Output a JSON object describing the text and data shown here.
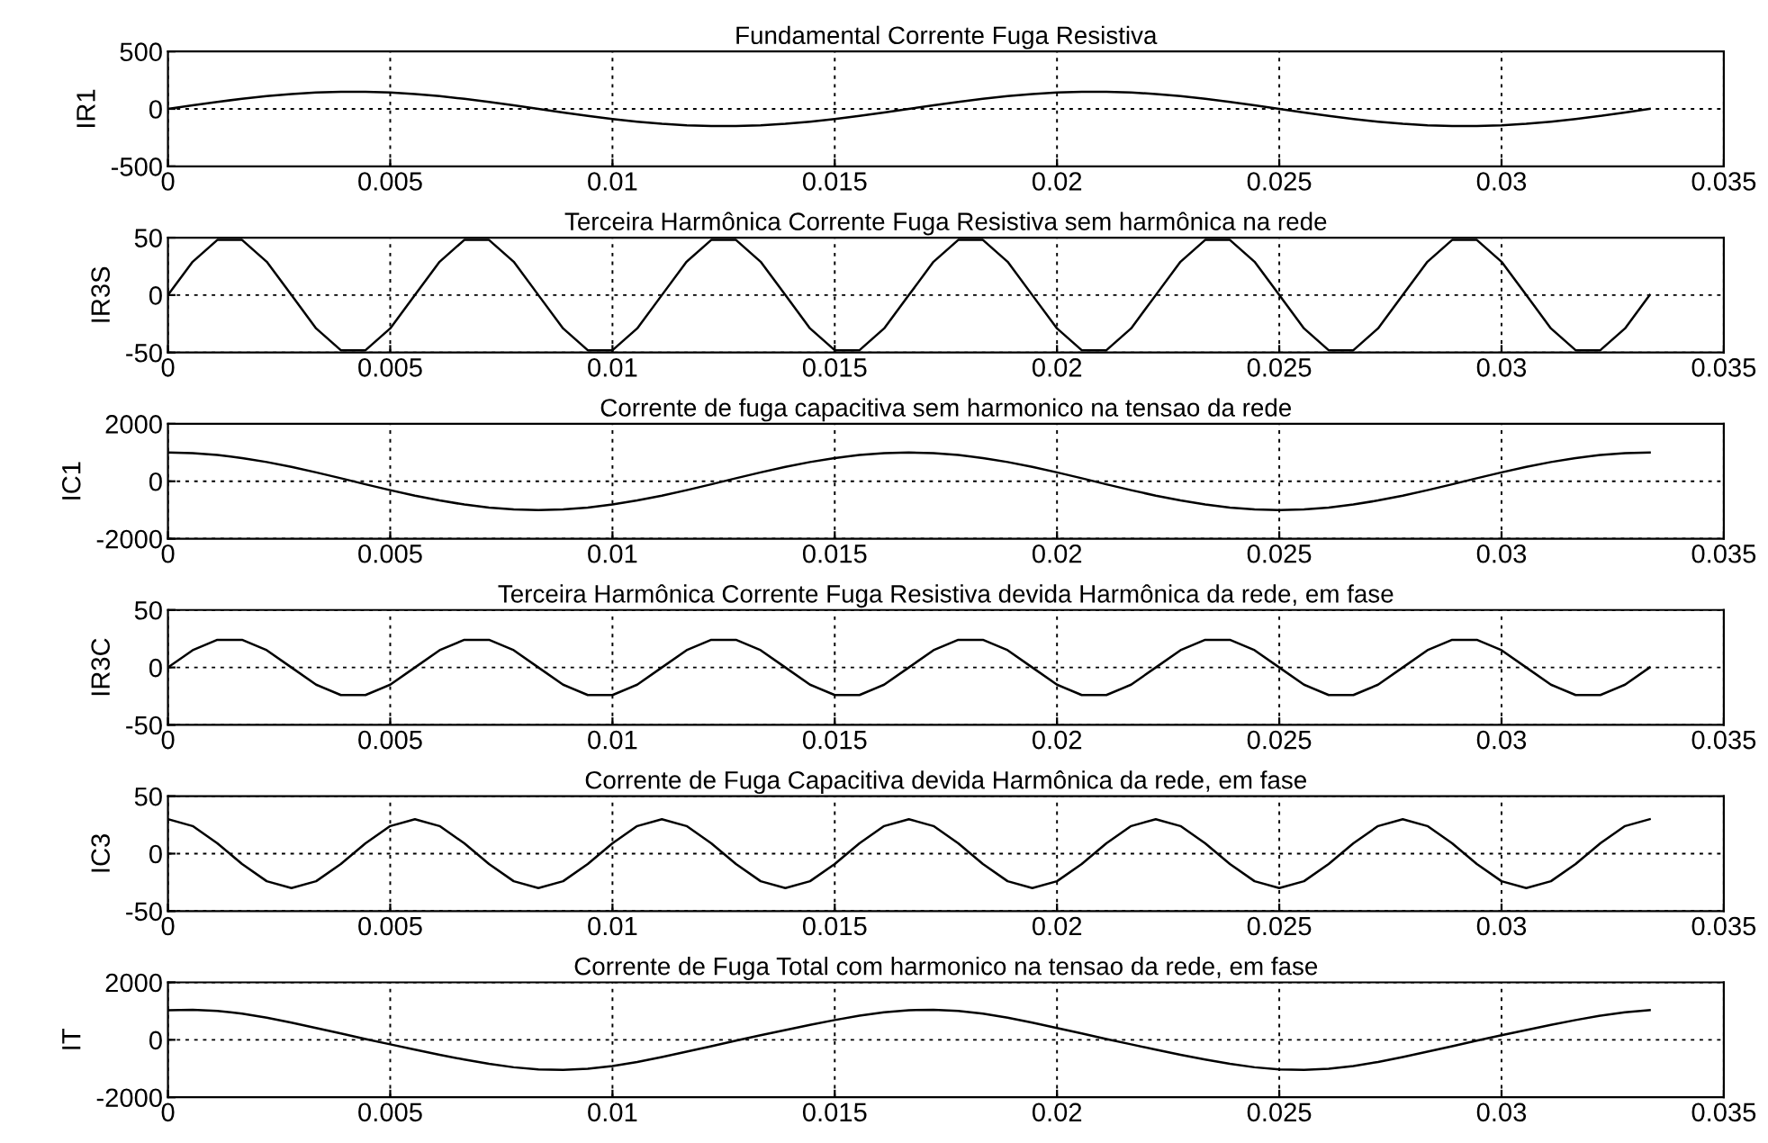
{
  "chart_data": [
    {
      "type": "line",
      "title": "Fundamental Corrente Fuga Resistiva",
      "ylabel": "IR1",
      "grid": true,
      "line_style": "solid",
      "x": [
        0,
        0.000556,
        0.001111,
        0.001667,
        0.002222,
        0.002778,
        0.003333,
        0.003889,
        0.004444,
        0.005,
        0.005556,
        0.006111,
        0.006667,
        0.007222,
        0.007778,
        0.008333,
        0.008889,
        0.009444,
        0.01,
        0.010556,
        0.011111,
        0.011667,
        0.012222,
        0.012778,
        0.013333,
        0.013889,
        0.014444,
        0.015,
        0.015556,
        0.016111,
        0.016667,
        0.017222,
        0.017778,
        0.018333,
        0.018889,
        0.019444,
        0.02,
        0.020556,
        0.021111,
        0.021667,
        0.022222,
        0.022778,
        0.023333,
        0.023889,
        0.024444,
        0.025,
        0.025556,
        0.026111,
        0.026667,
        0.027222,
        0.027778,
        0.028333,
        0.028889,
        0.029444,
        0.03,
        0.030556,
        0.031111,
        0.031667,
        0.032222,
        0.032778,
        0.033333
      ],
      "series": [
        {
          "color": "#000000",
          "values": [
            0,
            31,
            61,
            88,
            111,
            130,
            143,
            149,
            149,
            143,
            130,
            111,
            88,
            61,
            31,
            0,
            -31,
            -61,
            -88,
            -111,
            -130,
            -143,
            -149,
            -149,
            -143,
            -130,
            -111,
            -88,
            -61,
            -31,
            0,
            31,
            61,
            88,
            111,
            130,
            143,
            149,
            149,
            143,
            130,
            111,
            88,
            61,
            31,
            0,
            -31,
            -61,
            -88,
            -111,
            -130,
            -143,
            -149,
            -149,
            -143,
            -130,
            -111,
            -88,
            -61,
            -31,
            0
          ]
        }
      ],
      "xlim": [
        0,
        0.035
      ],
      "xticks": [
        0,
        0.005,
        0.01,
        0.015,
        0.02,
        0.025,
        0.03,
        0.035
      ],
      "ylim": [
        -500,
        500
      ],
      "yticks": [
        -500,
        0,
        500
      ]
    },
    {
      "type": "line",
      "title": "Terceira Harmônica Corrente Fuga Resistiva sem harmônica na rede",
      "ylabel": "IR3S",
      "grid": true,
      "line_style": "solid",
      "x": [
        0,
        0.000556,
        0.001111,
        0.001667,
        0.002222,
        0.002778,
        0.003333,
        0.003889,
        0.004444,
        0.005,
        0.005556,
        0.006111,
        0.006667,
        0.007222,
        0.007778,
        0.008333,
        0.008889,
        0.009444,
        0.01,
        0.010556,
        0.011111,
        0.011667,
        0.012222,
        0.012778,
        0.013333,
        0.013889,
        0.014444,
        0.015,
        0.015556,
        0.016111,
        0.016667,
        0.017222,
        0.017778,
        0.018333,
        0.018889,
        0.019444,
        0.02,
        0.020556,
        0.021111,
        0.021667,
        0.022222,
        0.022778,
        0.023333,
        0.023889,
        0.024444,
        0.025,
        0.025556,
        0.026111,
        0.026667,
        0.027222,
        0.027778,
        0.028333,
        0.028889,
        0.029444,
        0.03,
        0.030556,
        0.031111,
        0.031667,
        0.032222,
        0.032778,
        0.033333
      ],
      "series": [
        {
          "color": "#000000",
          "values": [
            0,
            29,
            48,
            48,
            29,
            0,
            -29,
            -48,
            -48,
            -29,
            0,
            29,
            48,
            48,
            29,
            0,
            -29,
            -48,
            -48,
            -29,
            0,
            29,
            48,
            48,
            29,
            0,
            -29,
            -48,
            -48,
            -29,
            0,
            29,
            48,
            48,
            29,
            0,
            -29,
            -48,
            -48,
            -29,
            0,
            29,
            48,
            48,
            29,
            0,
            -29,
            -48,
            -48,
            -29,
            0,
            29,
            48,
            48,
            29,
            0,
            -29,
            -48,
            -48,
            -29,
            0
          ]
        }
      ],
      "xlim": [
        0,
        0.035
      ],
      "xticks": [
        0,
        0.005,
        0.01,
        0.015,
        0.02,
        0.025,
        0.03,
        0.035
      ],
      "ylim": [
        -50,
        50
      ],
      "yticks": [
        -50,
        0,
        50
      ]
    },
    {
      "type": "line",
      "title": "Corrente de fuga capacitiva sem harmonico na tensao da rede",
      "ylabel": "IC1",
      "grid": true,
      "line_style": "solid",
      "x": [
        0,
        0.000556,
        0.001111,
        0.001667,
        0.002222,
        0.002778,
        0.003333,
        0.003889,
        0.004444,
        0.005,
        0.005556,
        0.006111,
        0.006667,
        0.007222,
        0.007778,
        0.008333,
        0.008889,
        0.009444,
        0.01,
        0.010556,
        0.011111,
        0.011667,
        0.012222,
        0.012778,
        0.013333,
        0.013889,
        0.014444,
        0.015,
        0.015556,
        0.016111,
        0.016667,
        0.017222,
        0.017778,
        0.018333,
        0.018889,
        0.019444,
        0.02,
        0.020556,
        0.021111,
        0.021667,
        0.022222,
        0.022778,
        0.023333,
        0.023889,
        0.024444,
        0.025,
        0.025556,
        0.026111,
        0.026667,
        0.027222,
        0.027778,
        0.028333,
        0.028889,
        0.029444,
        0.03,
        0.030556,
        0.031111,
        0.031667,
        0.032222,
        0.032778,
        0.033333
      ],
      "series": [
        {
          "color": "#000000",
          "values": [
            1000,
            978,
            914,
            809,
            669,
            500,
            309,
            105,
            -105,
            -309,
            -500,
            -669,
            -809,
            -914,
            -978,
            -1000,
            -978,
            -914,
            -809,
            -669,
            -500,
            -309,
            -105,
            105,
            309,
            500,
            669,
            809,
            914,
            978,
            1000,
            978,
            914,
            809,
            669,
            500,
            309,
            105,
            -105,
            -309,
            -500,
            -669,
            -809,
            -914,
            -978,
            -1000,
            -978,
            -914,
            -809,
            -669,
            -500,
            -309,
            -105,
            105,
            309,
            500,
            669,
            809,
            914,
            978,
            1000
          ]
        }
      ],
      "xlim": [
        0,
        0.035
      ],
      "xticks": [
        0,
        0.005,
        0.01,
        0.015,
        0.02,
        0.025,
        0.03,
        0.035
      ],
      "ylim": [
        -2000,
        2000
      ],
      "yticks": [
        -2000,
        0,
        2000
      ]
    },
    {
      "type": "line",
      "title": "Terceira Harmônica Corrente Fuga Resistiva devida Harmônica da rede, em fase",
      "ylabel": "IR3C",
      "grid": true,
      "line_style": "solid",
      "x": [
        0,
        0.000556,
        0.001111,
        0.001667,
        0.002222,
        0.002778,
        0.003333,
        0.003889,
        0.004444,
        0.005,
        0.005556,
        0.006111,
        0.006667,
        0.007222,
        0.007778,
        0.008333,
        0.008889,
        0.009444,
        0.01,
        0.010556,
        0.011111,
        0.011667,
        0.012222,
        0.012778,
        0.013333,
        0.013889,
        0.014444,
        0.015,
        0.015556,
        0.016111,
        0.016667,
        0.017222,
        0.017778,
        0.018333,
        0.018889,
        0.019444,
        0.02,
        0.020556,
        0.021111,
        0.021667,
        0.022222,
        0.022778,
        0.023333,
        0.023889,
        0.024444,
        0.025,
        0.025556,
        0.026111,
        0.026667,
        0.027222,
        0.027778,
        0.028333,
        0.028889,
        0.029444,
        0.03,
        0.030556,
        0.031111,
        0.031667,
        0.032222,
        0.032778,
        0.033333
      ],
      "series": [
        {
          "color": "#000000",
          "values": [
            0,
            15,
            24,
            24,
            15,
            0,
            -15,
            -24,
            -24,
            -15,
            0,
            15,
            24,
            24,
            15,
            0,
            -15,
            -24,
            -24,
            -15,
            0,
            15,
            24,
            24,
            15,
            0,
            -15,
            -24,
            -24,
            -15,
            0,
            15,
            24,
            24,
            15,
            0,
            -15,
            -24,
            -24,
            -15,
            0,
            15,
            24,
            24,
            15,
            0,
            -15,
            -24,
            -24,
            -15,
            0,
            15,
            24,
            24,
            15,
            0,
            -15,
            -24,
            -24,
            -15,
            0
          ]
        }
      ],
      "xlim": [
        0,
        0.035
      ],
      "xticks": [
        0,
        0.005,
        0.01,
        0.015,
        0.02,
        0.025,
        0.03,
        0.035
      ],
      "ylim": [
        -50,
        50
      ],
      "yticks": [
        -50,
        0,
        50
      ]
    },
    {
      "type": "line",
      "title": "Corrente de Fuga Capacitiva devida Harmônica da rede, em fase",
      "ylabel": "IC3",
      "grid": true,
      "line_style": "solid",
      "x": [
        0,
        0.000556,
        0.001111,
        0.001667,
        0.002222,
        0.002778,
        0.003333,
        0.003889,
        0.004444,
        0.005,
        0.005556,
        0.006111,
        0.006667,
        0.007222,
        0.007778,
        0.008333,
        0.008889,
        0.009444,
        0.01,
        0.010556,
        0.011111,
        0.011667,
        0.012222,
        0.012778,
        0.013333,
        0.013889,
        0.014444,
        0.015,
        0.015556,
        0.016111,
        0.016667,
        0.017222,
        0.017778,
        0.018333,
        0.018889,
        0.019444,
        0.02,
        0.020556,
        0.021111,
        0.021667,
        0.022222,
        0.022778,
        0.023333,
        0.023889,
        0.024444,
        0.025,
        0.025556,
        0.026111,
        0.026667,
        0.027222,
        0.027778,
        0.028333,
        0.028889,
        0.029444,
        0.03,
        0.030556,
        0.031111,
        0.031667,
        0.032222,
        0.032778,
        0.033333
      ],
      "series": [
        {
          "color": "#000000",
          "values": [
            30,
            24,
            9,
            -9,
            -24,
            -30,
            -24,
            -9,
            9,
            24,
            30,
            24,
            9,
            -9,
            -24,
            -30,
            -24,
            -9,
            9,
            24,
            30,
            24,
            9,
            -9,
            -24,
            -30,
            -24,
            -9,
            9,
            24,
            30,
            24,
            9,
            -9,
            -24,
            -30,
            -24,
            -9,
            9,
            24,
            30,
            24,
            9,
            -9,
            -24,
            -30,
            -24,
            -9,
            9,
            24,
            30,
            24,
            9,
            -9,
            -24,
            -30,
            -24,
            -9,
            9,
            24,
            30
          ]
        }
      ],
      "xlim": [
        0,
        0.035
      ],
      "xticks": [
        0,
        0.005,
        0.01,
        0.015,
        0.02,
        0.025,
        0.03,
        0.035
      ],
      "ylim": [
        -50,
        50
      ],
      "yticks": [
        -50,
        0,
        50
      ]
    },
    {
      "type": "line",
      "title": "Corrente de Fuga Total com harmonico na tensao da rede, em fase",
      "ylabel": "IT",
      "grid": true,
      "line_style": "solid",
      "x": [
        0,
        0.000556,
        0.001111,
        0.001667,
        0.002222,
        0.002778,
        0.003333,
        0.003889,
        0.004444,
        0.005,
        0.005556,
        0.006111,
        0.006667,
        0.007222,
        0.007778,
        0.008333,
        0.008889,
        0.009444,
        0.01,
        0.010556,
        0.011111,
        0.011667,
        0.012222,
        0.012778,
        0.013333,
        0.013889,
        0.014444,
        0.015,
        0.015556,
        0.016111,
        0.016667,
        0.017222,
        0.017778,
        0.018333,
        0.018889,
        0.019444,
        0.02,
        0.020556,
        0.021111,
        0.021667,
        0.022222,
        0.022778,
        0.023333,
        0.023889,
        0.024444,
        0.025,
        0.025556,
        0.026111,
        0.026667,
        0.027222,
        0.027778,
        0.028333,
        0.028889,
        0.029444,
        0.03,
        0.030556,
        0.031111,
        0.031667,
        0.032222,
        0.032778,
        0.033333
      ],
      "series": [
        {
          "color": "#000000",
          "values": [
            1030,
            1048,
            1008,
            912,
            771,
            600,
            413,
            221,
            29,
            -157,
            -340,
            -519,
            -688,
            -838,
            -956,
            -1030,
            -1048,
            -1008,
            -912,
            -771,
            -600,
            -413,
            -221,
            -29,
            157,
            340,
            519,
            688,
            838,
            956,
            1030,
            1048,
            1008,
            912,
            771,
            600,
            413,
            221,
            29,
            -157,
            -340,
            -519,
            -688,
            -838,
            -956,
            -1030,
            -1048,
            -1008,
            -912,
            -771,
            -600,
            -413,
            -221,
            -29,
            157,
            340,
            519,
            688,
            838,
            956,
            1030
          ]
        }
      ],
      "xlim": [
        0,
        0.035
      ],
      "xticks": [
        0,
        0.005,
        0.01,
        0.015,
        0.02,
        0.025,
        0.03,
        0.035
      ],
      "ylim": [
        -2000,
        2000
      ],
      "yticks": [
        -2000,
        0,
        2000
      ]
    }
  ]
}
